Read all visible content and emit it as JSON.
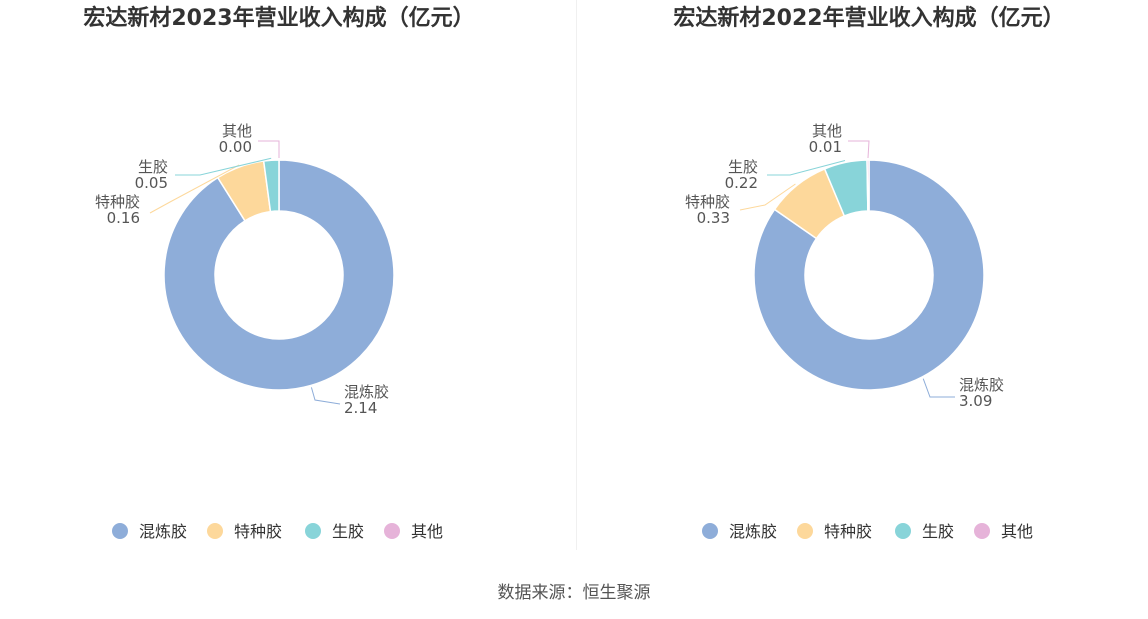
{
  "source": "数据来源：恒生聚源",
  "colors": {
    "混炼胶": "#8eadd9",
    "特种胶": "#fdd89b",
    "生胶": "#88d4d9",
    "其他": "#e6b3d9"
  },
  "chart_data": [
    {
      "type": "pie",
      "title": "宏达新材2023年营业收入构成（亿元）",
      "categories": [
        "混炼胶",
        "特种胶",
        "生胶",
        "其他"
      ],
      "values": [
        2.14,
        0.16,
        0.05,
        0.0
      ],
      "value_labels": [
        "2.14",
        "0.16",
        "0.05",
        "0.00"
      ],
      "donut": true,
      "legend": "bottom"
    },
    {
      "type": "pie",
      "title": "宏达新材2022年营业收入构成（亿元）",
      "categories": [
        "混炼胶",
        "特种胶",
        "生胶",
        "其他"
      ],
      "values": [
        3.09,
        0.33,
        0.22,
        0.01
      ],
      "value_labels": [
        "3.09",
        "0.33",
        "0.22",
        "0.01"
      ],
      "donut": true,
      "legend": "bottom"
    }
  ]
}
